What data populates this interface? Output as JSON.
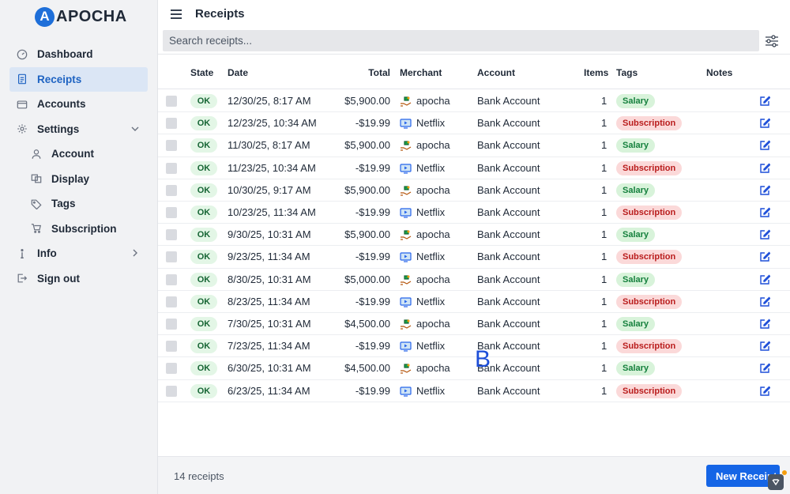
{
  "app": {
    "logo_letter": "A",
    "logo_text": "APOCHA",
    "brand_color": "#1e6fd9"
  },
  "sidebar": {
    "items": [
      {
        "label": "Dashboard",
        "icon": "gauge-icon",
        "active": false
      },
      {
        "label": "Receipts",
        "icon": "document-icon",
        "active": true
      },
      {
        "label": "Accounts",
        "icon": "wallet-icon",
        "active": false
      },
      {
        "label": "Settings",
        "icon": "gear-icon",
        "active": false,
        "expanded": true
      },
      {
        "label": "Account",
        "icon": "person-icon",
        "sub": true
      },
      {
        "label": "Display",
        "icon": "display-icon",
        "sub": true
      },
      {
        "label": "Tags",
        "icon": "tag-icon",
        "sub": true
      },
      {
        "label": "Subscription",
        "icon": "cart-icon",
        "sub": true
      },
      {
        "label": "Info",
        "icon": "info-icon",
        "expanded": false
      },
      {
        "label": "Sign out",
        "icon": "sign-out-icon"
      }
    ]
  },
  "header": {
    "title": "Receipts",
    "search_placeholder": "Search receipts..."
  },
  "table": {
    "columns": {
      "state": "State",
      "date": "Date",
      "total": "Total",
      "merchant": "Merchant",
      "account": "Account",
      "items": "Items",
      "tags": "Tags",
      "notes": "Notes"
    },
    "rows": [
      {
        "state": "OK",
        "date": "12/30/25, 8:17 AM",
        "total": "$5,900.00",
        "merchant": "apocha",
        "merchant_icon": "money-hand-icon",
        "account": "Bank Account",
        "items": "1",
        "tag": "Salary",
        "tag_type": "salary"
      },
      {
        "state": "OK",
        "date": "12/23/25, 10:34 AM",
        "total": "-$19.99",
        "merchant": "Netflix",
        "merchant_icon": "tv-icon",
        "account": "Bank Account",
        "items": "1",
        "tag": "Subscription",
        "tag_type": "subscription"
      },
      {
        "state": "OK",
        "date": "11/30/25, 8:17 AM",
        "total": "$5,900.00",
        "merchant": "apocha",
        "merchant_icon": "money-hand-icon",
        "account": "Bank Account",
        "items": "1",
        "tag": "Salary",
        "tag_type": "salary"
      },
      {
        "state": "OK",
        "date": "11/23/25, 10:34 AM",
        "total": "-$19.99",
        "merchant": "Netflix",
        "merchant_icon": "tv-icon",
        "account": "Bank Account",
        "items": "1",
        "tag": "Subscription",
        "tag_type": "subscription"
      },
      {
        "state": "OK",
        "date": "10/30/25, 9:17 AM",
        "total": "$5,900.00",
        "merchant": "apocha",
        "merchant_icon": "money-hand-icon",
        "account": "Bank Account",
        "items": "1",
        "tag": "Salary",
        "tag_type": "salary"
      },
      {
        "state": "OK",
        "date": "10/23/25, 11:34 AM",
        "total": "-$19.99",
        "merchant": "Netflix",
        "merchant_icon": "tv-icon",
        "account": "Bank Account",
        "items": "1",
        "tag": "Subscription",
        "tag_type": "subscription"
      },
      {
        "state": "OK",
        "date": "9/30/25, 10:31 AM",
        "total": "$5,900.00",
        "merchant": "apocha",
        "merchant_icon": "money-hand-icon",
        "account": "Bank Account",
        "items": "1",
        "tag": "Salary",
        "tag_type": "salary"
      },
      {
        "state": "OK",
        "date": "9/23/25, 11:34 AM",
        "total": "-$19.99",
        "merchant": "Netflix",
        "merchant_icon": "tv-icon",
        "account": "Bank Account",
        "items": "1",
        "tag": "Subscription",
        "tag_type": "subscription"
      },
      {
        "state": "OK",
        "date": "8/30/25, 10:31 AM",
        "total": "$5,000.00",
        "merchant": "apocha",
        "merchant_icon": "money-hand-icon",
        "account": "Bank Account",
        "items": "1",
        "tag": "Salary",
        "tag_type": "salary"
      },
      {
        "state": "OK",
        "date": "8/23/25, 11:34 AM",
        "total": "-$19.99",
        "merchant": "Netflix",
        "merchant_icon": "tv-icon",
        "account": "Bank Account",
        "items": "1",
        "tag": "Subscription",
        "tag_type": "subscription"
      },
      {
        "state": "OK",
        "date": "7/30/25, 10:31 AM",
        "total": "$4,500.00",
        "merchant": "apocha",
        "merchant_icon": "money-hand-icon",
        "account": "Bank Account",
        "items": "1",
        "tag": "Salary",
        "tag_type": "salary"
      },
      {
        "state": "OK",
        "date": "7/23/25, 11:34 AM",
        "total": "-$19.99",
        "merchant": "Netflix",
        "merchant_icon": "tv-icon",
        "account": "Bank Account",
        "items": "1",
        "tag": "Subscription",
        "tag_type": "subscription"
      },
      {
        "state": "OK",
        "date": "6/30/25, 10:31 AM",
        "total": "$4,500.00",
        "merchant": "apocha",
        "merchant_icon": "money-hand-icon",
        "account": "Bank Account",
        "items": "1",
        "tag": "Salary",
        "tag_type": "salary"
      },
      {
        "state": "OK",
        "date": "6/23/25, 11:34 AM",
        "total": "-$19.99",
        "merchant": "Netflix",
        "merchant_icon": "tv-icon",
        "account": "Bank Account",
        "items": "1",
        "tag": "Subscription",
        "tag_type": "subscription"
      }
    ]
  },
  "overlay_label": "B",
  "footer": {
    "count_text": "14 receipts",
    "new_button_label": "New Receipt"
  },
  "colors": {
    "accent": "#1565e6",
    "ok_bg": "#e3f6e6",
    "salary_bg": "#d8f3da",
    "subscription_bg": "#fbd9d9"
  }
}
